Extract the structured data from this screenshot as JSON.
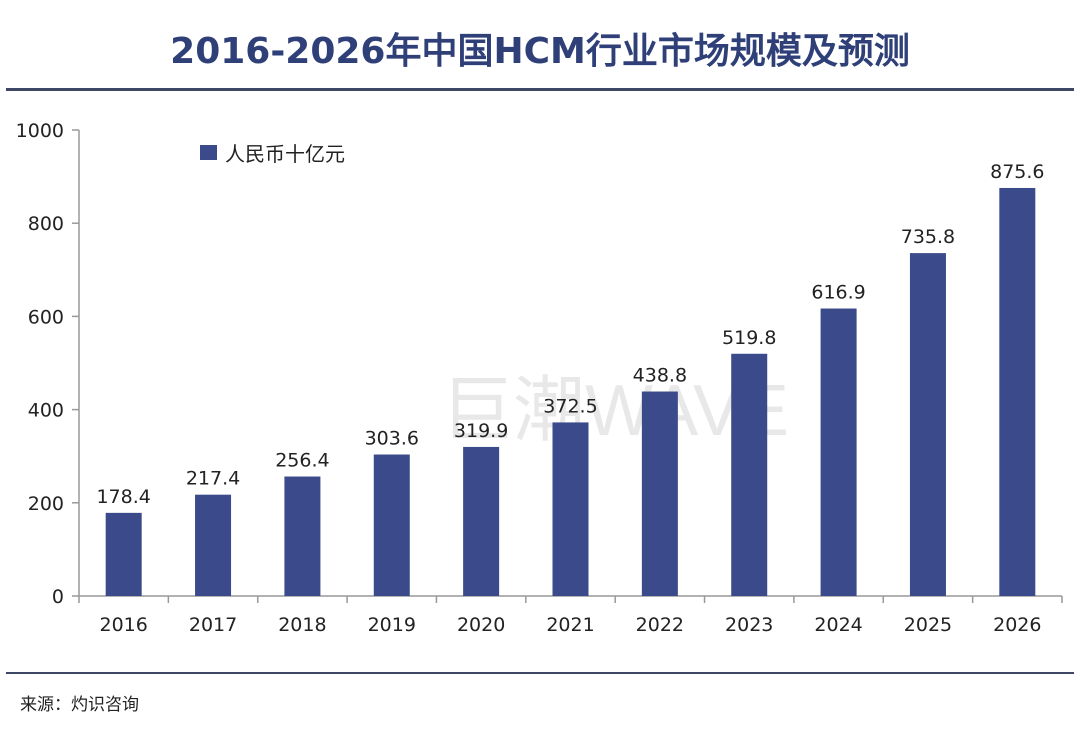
{
  "title": "2016-2026年中国HCM行业市场规模及预测",
  "source": "来源：灼识咨询",
  "watermark": "巨潮WAVE",
  "colors": {
    "bar": "#3a4a8a",
    "title": "#2f3f78",
    "rule": "#3d4766"
  },
  "chart_data": {
    "type": "bar",
    "title": "2016-2026年中国HCM行业市场规模及预测",
    "categories": [
      "2016",
      "2017",
      "2018",
      "2019",
      "2020",
      "2021",
      "2022",
      "2023",
      "2024",
      "2025",
      "2026"
    ],
    "series": [
      {
        "name": "人民币十亿元",
        "values": [
          178.4,
          217.4,
          256.4,
          303.6,
          319.9,
          372.5,
          438.8,
          519.8,
          616.9,
          735.8,
          875.6
        ]
      }
    ],
    "data_labels": [
      "178.4",
      "217.4",
      "256.4",
      "303.6",
      "319.9",
      "372.5",
      "438.8",
      "519.8",
      "616.9",
      "735.8",
      "875.6"
    ],
    "ylim": [
      0,
      1000
    ],
    "yticks": [
      "0",
      "200",
      "400",
      "600",
      "800",
      "1000"
    ],
    "grid": false,
    "legend": "top-left"
  }
}
